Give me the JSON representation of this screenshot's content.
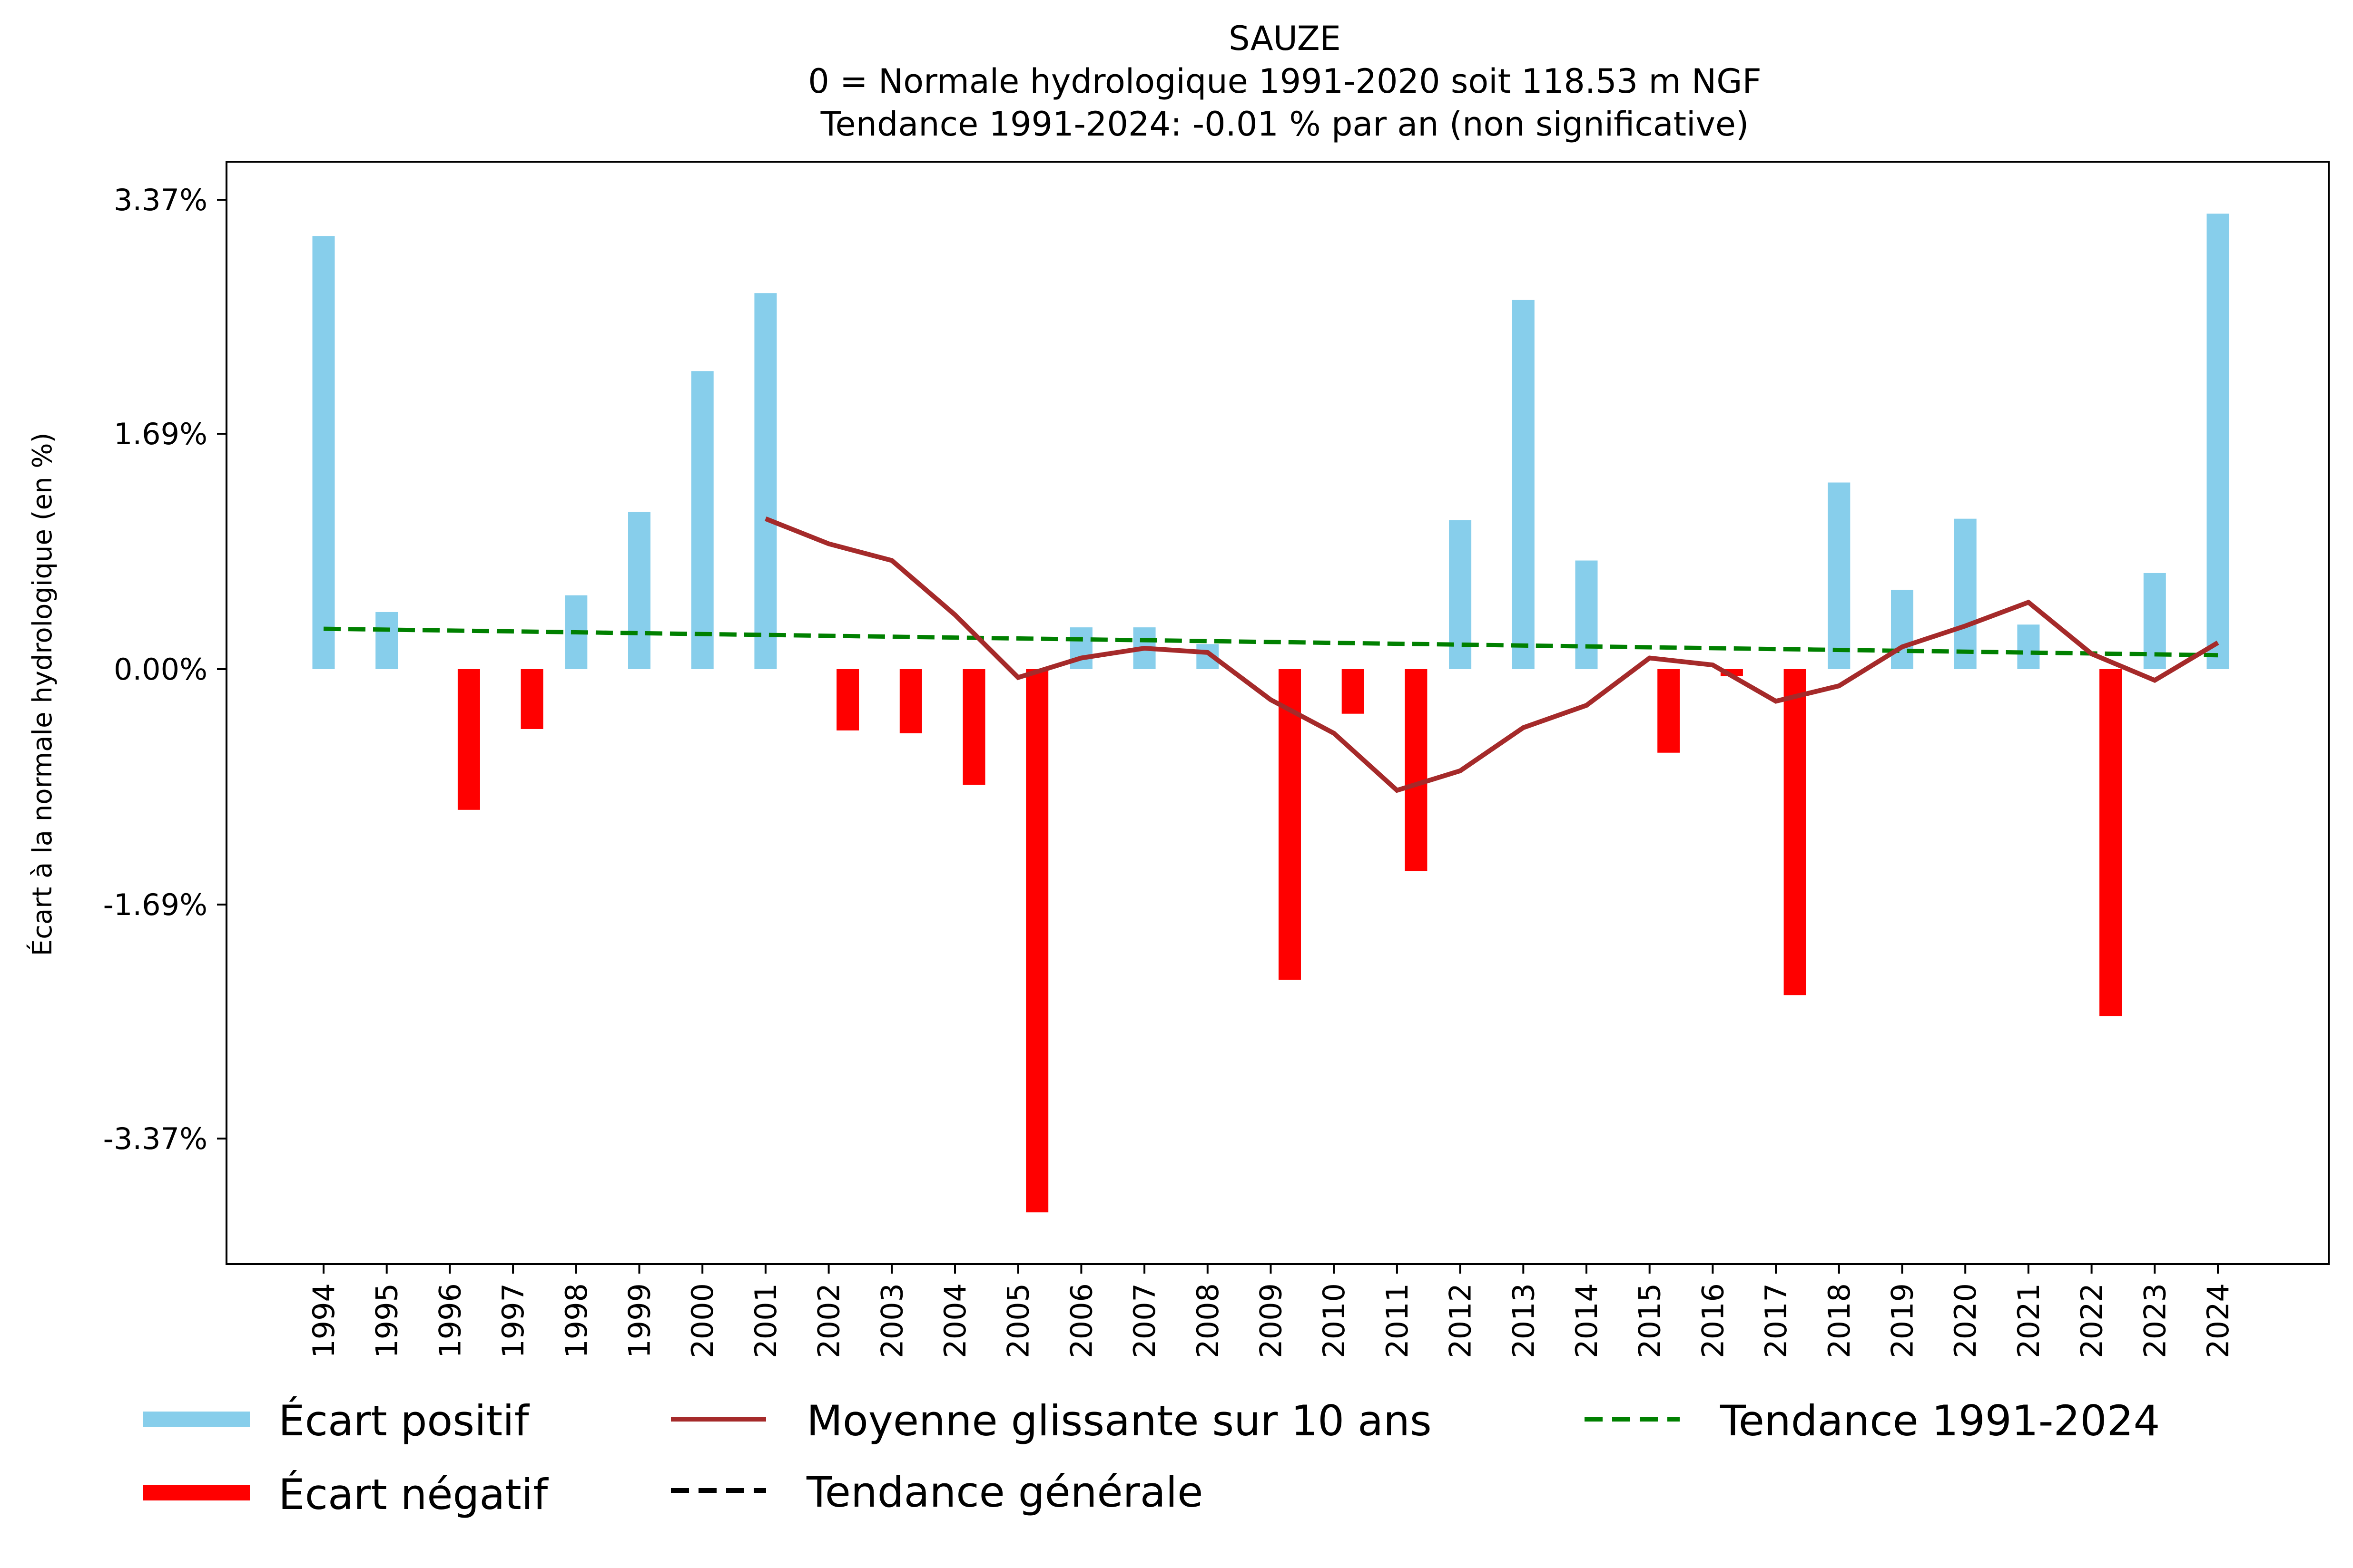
{
  "chart_data": {
    "type": "bar",
    "title": "SAUZE",
    "subtitle_1": "0 = Normale hydrologique 1991-2020 soit 118.53 m NGF",
    "subtitle_2": "Tendance 1991-2024: -0.01 % par an (non significative)",
    "xlabel": "",
    "ylabel": "Écart à la normale hydrologique (en %)",
    "ylim": [
      -4.1,
      3.6
    ],
    "yticks": [
      3.37,
      1.69,
      0.0,
      -1.69,
      -3.37
    ],
    "ytick_labels": [
      "3.37%",
      "1.69%",
      "0.00%",
      "-1.69%",
      "-3.37%"
    ],
    "grid": false,
    "categories": [
      "1994",
      "1995",
      "1996",
      "1997",
      "1998",
      "1999",
      "2000",
      "2001",
      "2002",
      "2003",
      "2004",
      "2005",
      "2006",
      "2007",
      "2008",
      "2009",
      "2010",
      "2011",
      "2012",
      "2013",
      "2014",
      "2015",
      "2016",
      "2017",
      "2018",
      "2019",
      "2020",
      "2021",
      "2022",
      "2023",
      "2024"
    ],
    "values": [
      3.11,
      0.41,
      -1.01,
      -0.43,
      0.53,
      1.13,
      2.14,
      2.7,
      -0.44,
      -0.46,
      -0.83,
      -3.9,
      0.3,
      0.3,
      0.18,
      -2.23,
      -0.32,
      -1.45,
      1.07,
      2.65,
      0.78,
      -0.6,
      -0.05,
      -2.34,
      1.34,
      0.57,
      1.08,
      0.32,
      -2.49,
      0.69,
      3.27
    ],
    "moving_average": {
      "name": "Moyenne glissante sur 10 ans",
      "years": [
        "2001",
        "2002",
        "2003",
        "2004",
        "2005",
        "2006",
        "2007",
        "2008",
        "2009",
        "2010",
        "2011",
        "2012",
        "2013",
        "2014",
        "2015",
        "2016",
        "2017",
        "2018",
        "2019",
        "2020",
        "2021",
        "2022",
        "2023",
        "2024"
      ],
      "values": [
        1.08,
        0.9,
        0.78,
        0.39,
        -0.06,
        0.08,
        0.15,
        0.12,
        -0.22,
        -0.46,
        -0.87,
        -0.73,
        -0.42,
        -0.26,
        0.08,
        0.03,
        -0.23,
        -0.12,
        0.16,
        0.31,
        0.48,
        0.11,
        -0.08,
        0.19
      ]
    },
    "trend": {
      "name": "Tendance 1991-2024",
      "start": {
        "year": "1994",
        "value": 0.29
      },
      "end": {
        "year": "2024",
        "value": 0.1
      }
    },
    "legend": {
      "placement": "bottom",
      "entries": [
        {
          "label": "Écart positif",
          "type": "patch",
          "color": "#87ceeb"
        },
        {
          "label": "Écart négatif",
          "type": "patch",
          "color": "#ff0000"
        },
        {
          "label": "Moyenne glissante sur 10 ans",
          "type": "line",
          "color": "#a52a2a"
        },
        {
          "label": "Tendance générale",
          "type": "dashed",
          "color": "#000000"
        },
        {
          "label": "Tendance 1991-2024",
          "type": "dashed",
          "color": "#008000"
        }
      ]
    },
    "colors": {
      "positive": "#87ceeb",
      "negative": "#ff0000",
      "moving_average": "#a52a2a",
      "trend": "#008000",
      "general_trend": "#000000"
    }
  }
}
